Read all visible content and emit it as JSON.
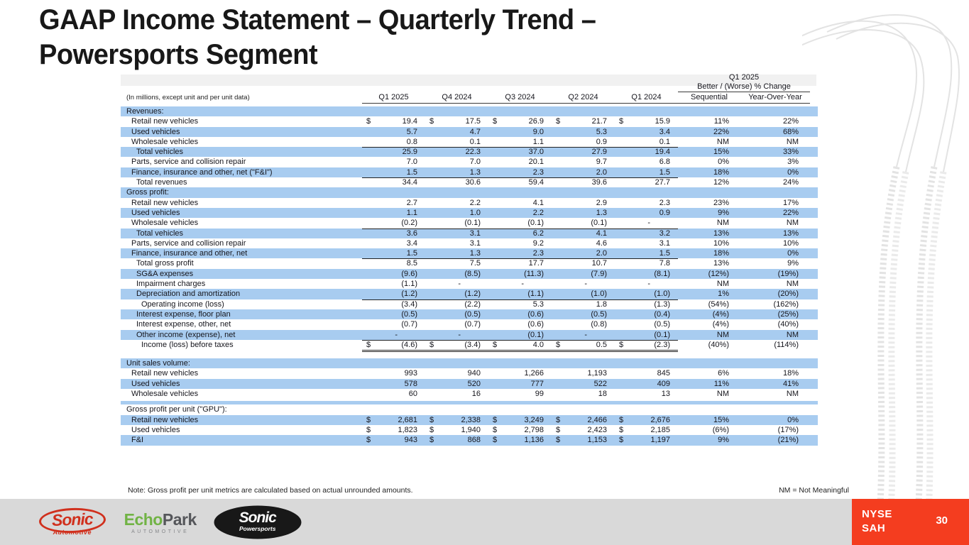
{
  "title": {
    "line1": "GAAP Income Statement – Quarterly Trend –",
    "line2": "Powersports Segment"
  },
  "table": {
    "caption": "(In millions, except unit and per unit data)",
    "change_header": {
      "line1": "Q1 2025",
      "line2": "Better / (Worse) % Change"
    },
    "columns": {
      "quarters": [
        "Q1 2025",
        "Q4 2024",
        "Q3 2024",
        "Q2 2024",
        "Q1 2024"
      ],
      "sequential": "Sequential",
      "yoy": "Year-Over-Year"
    },
    "rows": [
      {
        "t": "section",
        "label": "Revenues:",
        "shade": true
      },
      {
        "label": "Retail new vehicles",
        "ind": 1,
        "dollar": true,
        "shade": false,
        "v": [
          "19.4",
          "17.5",
          "26.9",
          "21.7",
          "15.9",
          "11%",
          "22%"
        ]
      },
      {
        "label": "Used vehicles",
        "ind": 1,
        "shade": true,
        "v": [
          "5.7",
          "4.7",
          "9.0",
          "5.3",
          "3.4",
          "22%",
          "68%"
        ]
      },
      {
        "label": "Wholesale vehicles",
        "ind": 1,
        "shade": false,
        "u": "s",
        "v": [
          "0.8",
          "0.1",
          "1.1",
          "0.9",
          "0.1",
          "NM",
          "NM"
        ]
      },
      {
        "label": "Total vehicles",
        "ind": 2,
        "shade": true,
        "v": [
          "25.9",
          "22.3",
          "37.0",
          "27.9",
          "19.4",
          "15%",
          "33%"
        ]
      },
      {
        "label": "Parts, service and collision repair",
        "ind": 1,
        "shade": false,
        "v": [
          "7.0",
          "7.0",
          "20.1",
          "9.7",
          "6.8",
          "0%",
          "3%"
        ]
      },
      {
        "label": "Finance, insurance and other, net (\"F&I\")",
        "ind": 1,
        "shade": true,
        "u": "s",
        "v": [
          "1.5",
          "1.3",
          "2.3",
          "2.0",
          "1.5",
          "18%",
          "0%"
        ]
      },
      {
        "label": "Total revenues",
        "ind": 2,
        "shade": false,
        "v": [
          "34.4",
          "30.6",
          "59.4",
          "39.6",
          "27.7",
          "12%",
          "24%"
        ]
      },
      {
        "t": "section",
        "label": "Gross profit:",
        "shade": true
      },
      {
        "label": "Retail new vehicles",
        "ind": 1,
        "shade": false,
        "v": [
          "2.7",
          "2.2",
          "4.1",
          "2.9",
          "2.3",
          "23%",
          "17%"
        ]
      },
      {
        "label": "Used vehicles",
        "ind": 1,
        "shade": true,
        "v": [
          "1.1",
          "1.0",
          "2.2",
          "1.3",
          "0.9",
          "9%",
          "22%"
        ]
      },
      {
        "label": "Wholesale vehicles",
        "ind": 1,
        "shade": false,
        "u": "s",
        "v": [
          "(0.2)",
          "(0.1)",
          "(0.1)",
          "(0.1)",
          "-",
          "NM",
          "NM"
        ]
      },
      {
        "label": "Total vehicles",
        "ind": 2,
        "shade": true,
        "v": [
          "3.6",
          "3.1",
          "6.2",
          "4.1",
          "3.2",
          "13%",
          "13%"
        ]
      },
      {
        "label": "Parts, service and collision repair",
        "ind": 1,
        "shade": false,
        "v": [
          "3.4",
          "3.1",
          "9.2",
          "4.6",
          "3.1",
          "10%",
          "10%"
        ]
      },
      {
        "label": "Finance, insurance and other, net",
        "ind": 1,
        "shade": true,
        "u": "s",
        "v": [
          "1.5",
          "1.3",
          "2.3",
          "2.0",
          "1.5",
          "18%",
          "0%"
        ]
      },
      {
        "label": "Total gross profit",
        "ind": 2,
        "shade": false,
        "v": [
          "8.5",
          "7.5",
          "17.7",
          "10.7",
          "7.8",
          "13%",
          "9%"
        ]
      },
      {
        "label": "SG&A expenses",
        "ind": 2,
        "shade": true,
        "v": [
          "(9.6)",
          "(8.5)",
          "(11.3)",
          "(7.9)",
          "(8.1)",
          "(12%)",
          "(19%)"
        ]
      },
      {
        "label": "Impairment charges",
        "ind": 2,
        "shade": false,
        "v": [
          "(1.1)",
          "-",
          "-",
          "-",
          "-",
          "NM",
          "NM"
        ]
      },
      {
        "label": "Depreciation and amortization",
        "ind": 2,
        "shade": true,
        "u": "s",
        "v": [
          "(1.2)",
          "(1.2)",
          "(1.1)",
          "(1.0)",
          "(1.0)",
          "1%",
          "(20%)"
        ]
      },
      {
        "label": "Operating income (loss)",
        "ind": 3,
        "shade": false,
        "v": [
          "(3.4)",
          "(2.2)",
          "5.3",
          "1.8",
          "(1.3)",
          "(54%)",
          "(162%)"
        ]
      },
      {
        "label": "Interest expense, floor plan",
        "ind": 2,
        "shade": true,
        "v": [
          "(0.5)",
          "(0.5)",
          "(0.6)",
          "(0.5)",
          "(0.4)",
          "(4%)",
          "(25%)"
        ]
      },
      {
        "label": "Interest expense, other, net",
        "ind": 2,
        "shade": false,
        "v": [
          "(0.7)",
          "(0.7)",
          "(0.6)",
          "(0.8)",
          "(0.5)",
          "(4%)",
          "(40%)"
        ]
      },
      {
        "label": "Other income (expense), net",
        "ind": 2,
        "shade": true,
        "u": "s",
        "v": [
          "-",
          "-",
          "(0.1)",
          "-",
          "(0.1)",
          "NM",
          "NM"
        ]
      },
      {
        "label": "Income (loss) before taxes",
        "ind": 3,
        "dollar": true,
        "shade": false,
        "u": "d",
        "v": [
          "(4.6)",
          "(3.4)",
          "4.0",
          "0.5",
          "(2.3)",
          "(40%)",
          "(114%)"
        ]
      },
      {
        "t": "spacer",
        "h": 12,
        "shade": false
      },
      {
        "t": "section",
        "label": "Unit sales volume:",
        "shade": true
      },
      {
        "label": "Retail new vehicles",
        "ind": 1,
        "shade": false,
        "v": [
          "993",
          "940",
          "1,266",
          "1,193",
          "845",
          "6%",
          "18%"
        ]
      },
      {
        "label": "Used vehicles",
        "ind": 1,
        "shade": true,
        "v": [
          "578",
          "520",
          "777",
          "522",
          "409",
          "11%",
          "41%"
        ]
      },
      {
        "label": "Wholesale vehicles",
        "ind": 1,
        "shade": false,
        "v": [
          "60",
          "16",
          "99",
          "18",
          "13",
          "NM",
          "NM"
        ]
      },
      {
        "t": "spacer",
        "h": 3,
        "shade": false
      },
      {
        "t": "spacer",
        "h": 5,
        "shade": true
      },
      {
        "t": "section",
        "label": "Gross profit per unit (\"GPU\"):",
        "shade": false
      },
      {
        "label": "Retail new vehicles",
        "ind": 1,
        "dollar": true,
        "shade": true,
        "v": [
          "2,681",
          "2,338",
          "3,249",
          "2,466",
          "2,676",
          "15%",
          "0%"
        ]
      },
      {
        "label": "Used vehicles",
        "ind": 1,
        "dollar": true,
        "shade": false,
        "v": [
          "1,823",
          "1,940",
          "2,798",
          "2,423",
          "2,185",
          "(6%)",
          "(17%)"
        ]
      },
      {
        "label": "F&I",
        "ind": 1,
        "dollar": true,
        "shade": true,
        "v": [
          "943",
          "868",
          "1,136",
          "1,153",
          "1,197",
          "9%",
          "(21%)"
        ]
      }
    ]
  },
  "notes": {
    "left": "Note: Gross profit per unit metrics are calculated based on actual unrounded amounts.",
    "right": "NM = Not Meaningful"
  },
  "footer": {
    "logos": {
      "sonic_automotive": {
        "name": "Sonic",
        "sub": "Automotive"
      },
      "echopark": {
        "part1": "Echo",
        "part2": "Park",
        "sub": "AUTOMOTIVE"
      },
      "sonic_powersports": {
        "name": "Sonic",
        "sub": "Powersports"
      }
    },
    "ticker": {
      "line1": "NYSE",
      "line2": "SAH"
    },
    "page_number": "30"
  },
  "colors": {
    "row_blue": "#a8ccf0",
    "accent_red": "#f43d1f",
    "footer_gray": "#d9d9d9",
    "sonic_red": "#d0301d",
    "echopark_green": "#71b345"
  }
}
